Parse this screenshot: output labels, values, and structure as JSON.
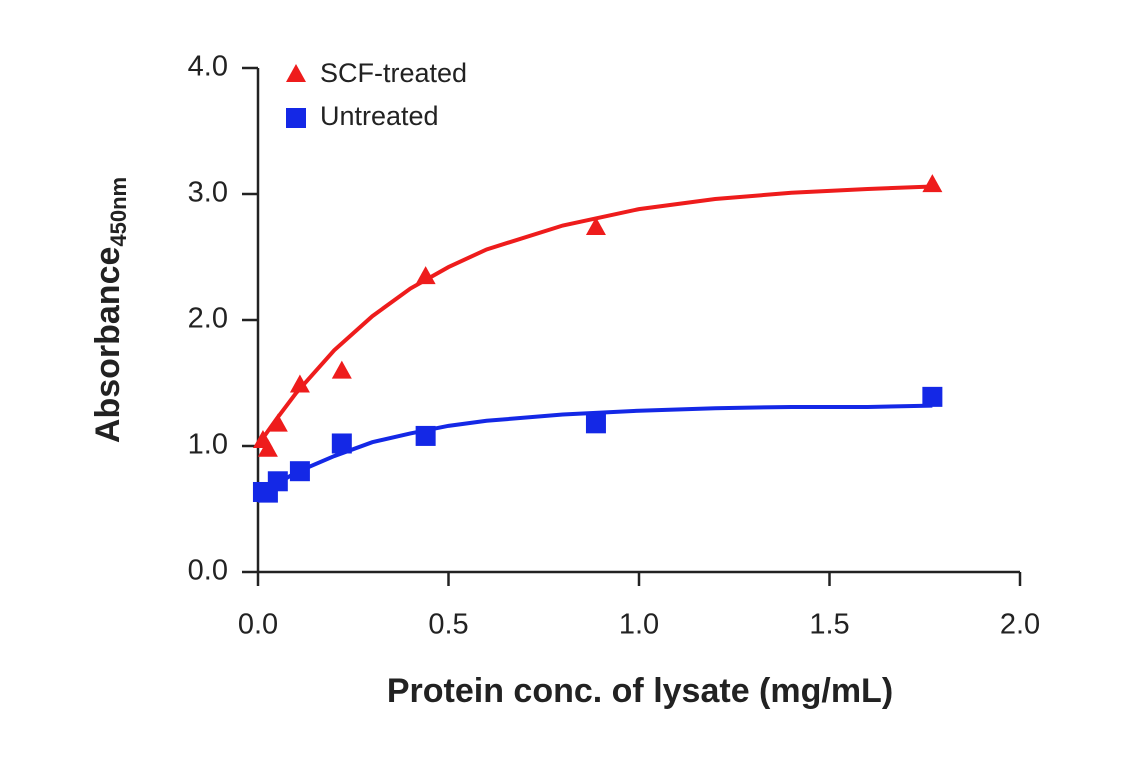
{
  "chart_data": {
    "type": "scatter",
    "x_label": "Protein conc. of lysate (mg/mL)",
    "y_label": "Absorbance",
    "y_label_subscript": "450nm",
    "xlim": [
      0,
      2.0
    ],
    "ylim": [
      0,
      4.0
    ],
    "xticks": [
      {
        "value": 0,
        "label": "0.0"
      },
      {
        "value": 0.5,
        "label": "0.5"
      },
      {
        "value": 1.0,
        "label": "1.0"
      },
      {
        "value": 1.5,
        "label": "1.5"
      },
      {
        "value": 2.0,
        "label": "2.0"
      }
    ],
    "yticks": [
      {
        "value": 0,
        "label": "0.0"
      },
      {
        "value": 1.0,
        "label": "1.0"
      },
      {
        "value": 2.0,
        "label": "2.0"
      },
      {
        "value": 3.0,
        "label": "3.0"
      },
      {
        "value": 4.0,
        "label": "4.0"
      }
    ],
    "grid": false,
    "legend": "upper left",
    "series": [
      {
        "name": "SCF-treated",
        "color": "#ee1c1c",
        "marker": "triangle",
        "x": [
          0.013,
          0.026,
          0.052,
          0.11,
          0.22,
          0.44,
          0.887,
          1.77
        ],
        "values": [
          1.04,
          0.97,
          1.17,
          1.48,
          1.59,
          2.34,
          2.73,
          3.07
        ],
        "fit": {
          "x": [
            0.01,
            0.05,
            0.1,
            0.2,
            0.3,
            0.4,
            0.5,
            0.6,
            0.8,
            1.0,
            1.2,
            1.4,
            1.6,
            1.77
          ],
          "values": [
            1.05,
            1.22,
            1.42,
            1.76,
            2.03,
            2.25,
            2.42,
            2.56,
            2.75,
            2.88,
            2.96,
            3.01,
            3.04,
            3.06
          ]
        }
      },
      {
        "name": "Untreated",
        "color": "#1428e6",
        "marker": "square",
        "x": [
          0.013,
          0.026,
          0.052,
          0.11,
          0.22,
          0.44,
          0.887,
          1.77
        ],
        "values": [
          0.635,
          0.63,
          0.72,
          0.8,
          1.02,
          1.08,
          1.18,
          1.39
        ],
        "fit": {
          "x": [
            0.01,
            0.05,
            0.1,
            0.2,
            0.3,
            0.4,
            0.5,
            0.6,
            0.8,
            1.0,
            1.2,
            1.4,
            1.6,
            1.77
          ],
          "values": [
            0.62,
            0.7,
            0.79,
            0.92,
            1.03,
            1.1,
            1.16,
            1.2,
            1.25,
            1.28,
            1.3,
            1.31,
            1.31,
            1.32
          ]
        }
      }
    ]
  }
}
